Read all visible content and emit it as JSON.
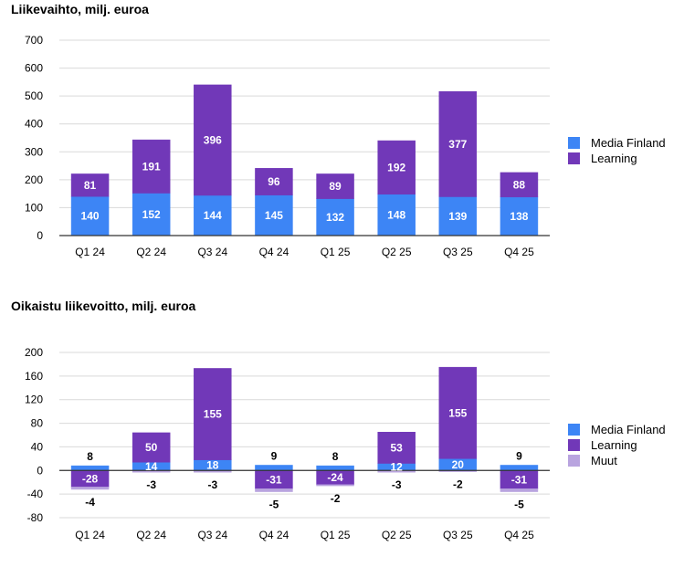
{
  "colors": {
    "media_finland": "#3d85f5",
    "learning": "#7138b8",
    "muut": "#b9a4df",
    "grid": "#d9d9d9",
    "axis": "#333333"
  },
  "chart_data": [
    {
      "type": "bar",
      "stacked": true,
      "title": "Liikevaihto, milj. euroa",
      "categories": [
        "Q1 24",
        "Q2 24",
        "Q3 24",
        "Q4 24",
        "Q1 25",
        "Q2 25",
        "Q3 25",
        "Q4 25"
      ],
      "series": [
        {
          "name": "Media Finland",
          "values": [
            140,
            152,
            144,
            145,
            132,
            148,
            139,
            138
          ]
        },
        {
          "name": "Learning",
          "values": [
            81,
            191,
            396,
            96,
            89,
            192,
            377,
            88
          ]
        }
      ],
      "yticks": [
        "700",
        "600",
        "500",
        "400",
        "300",
        "200",
        "100",
        "0"
      ],
      "ylim": [
        0,
        700
      ],
      "grid": true,
      "legend": "right"
    },
    {
      "type": "bar",
      "stacked": true,
      "title": "Oikaistu liikevoitto, milj. euroa",
      "categories": [
        "Q1 24",
        "Q2 24",
        "Q3 24",
        "Q4 24",
        "Q1 25",
        "Q2 25",
        "Q3 25",
        "Q4 25"
      ],
      "series": [
        {
          "name": "Media Finland",
          "values": [
            8,
            14,
            18,
            9,
            8,
            12,
            20,
            9
          ]
        },
        {
          "name": "Learning",
          "values": [
            -28,
            50,
            155,
            -31,
            -24,
            53,
            155,
            -31
          ]
        },
        {
          "name": "Muut",
          "values": [
            -4,
            -3,
            -3,
            -5,
            -2,
            -3,
            -2,
            -5
          ]
        }
      ],
      "yticks": [
        "200",
        "160",
        "120",
        "80",
        "40",
        "0",
        "-40",
        "-80"
      ],
      "ylim": [
        -80,
        200
      ],
      "grid": true,
      "legend": "right"
    }
  ]
}
